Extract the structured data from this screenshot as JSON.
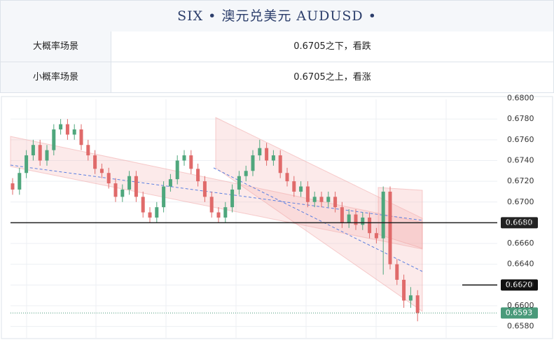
{
  "header": {
    "title": "SIX • 澳元兑美元 AUDUSD •"
  },
  "table": {
    "rows": [
      [
        "大概率场景",
        "0.6705之下，看跌"
      ],
      [
        "小概率场景",
        "0.6705之上，看涨"
      ]
    ]
  },
  "chart_data": {
    "type": "candlestick",
    "up_color": "#4fa77d",
    "down_color": "#e06a6a",
    "grid": true,
    "ylim": [
      0.6571,
      0.6799
    ],
    "yticks": [
      {
        "value": 0.658,
        "label": "0.6580"
      },
      {
        "value": 0.66,
        "label": "0.6600"
      },
      {
        "value": 0.662,
        "label": "0.6620"
      },
      {
        "value": 0.664,
        "label": "0.6640"
      },
      {
        "value": 0.666,
        "label": "0.6660"
      },
      {
        "value": 0.668,
        "label": "0.6680"
      },
      {
        "value": 0.67,
        "label": "0.6700"
      },
      {
        "value": 0.672,
        "label": "0.6720"
      },
      {
        "value": 0.674,
        "label": "0.6740"
      },
      {
        "value": 0.676,
        "label": "0.6760"
      },
      {
        "value": 0.678,
        "label": "0.6780"
      },
      {
        "value": 0.68,
        "label": "0.6800"
      }
    ],
    "open": [
      0.6718,
      0.6712,
      0.6728,
      0.6745,
      0.6755,
      0.674,
      0.675,
      0.677,
      0.6775,
      0.6765,
      0.677,
      0.6755,
      0.6745,
      0.6732,
      0.6728,
      0.6718,
      0.6705,
      0.6712,
      0.6725,
      0.6705,
      0.669,
      0.6685,
      0.6695,
      0.6715,
      0.6722,
      0.674,
      0.6745,
      0.6732,
      0.672,
      0.6705,
      0.669,
      0.6685,
      0.6695,
      0.6712,
      0.6725,
      0.673,
      0.6745,
      0.6752,
      0.674,
      0.6745,
      0.6728,
      0.672,
      0.671,
      0.6715,
      0.67,
      0.6705,
      0.67,
      0.6705,
      0.6695,
      0.668,
      0.6688,
      0.6678,
      0.6685,
      0.667,
      0.6665,
      0.671,
      0.664,
      0.6625,
      0.6605,
      0.661
    ],
    "high": [
      0.6723,
      0.6733,
      0.675,
      0.676,
      0.676,
      0.6755,
      0.6775,
      0.678,
      0.678,
      0.6775,
      0.6775,
      0.676,
      0.675,
      0.6737,
      0.6733,
      0.6723,
      0.6717,
      0.673,
      0.673,
      0.671,
      0.6695,
      0.67,
      0.672,
      0.6727,
      0.6745,
      0.675,
      0.675,
      0.6737,
      0.6725,
      0.671,
      0.6695,
      0.67,
      0.6717,
      0.673,
      0.6735,
      0.675,
      0.676,
      0.6757,
      0.675,
      0.675,
      0.6733,
      0.6725,
      0.672,
      0.672,
      0.671,
      0.671,
      0.671,
      0.671,
      0.67,
      0.6693,
      0.6693,
      0.669,
      0.669,
      0.6675,
      0.6715,
      0.6715,
      0.6645,
      0.663,
      0.6618,
      0.6615
    ],
    "low": [
      0.6707,
      0.6707,
      0.6723,
      0.674,
      0.6735,
      0.6735,
      0.6745,
      0.6765,
      0.676,
      0.676,
      0.675,
      0.674,
      0.6727,
      0.6723,
      0.6713,
      0.67,
      0.67,
      0.6707,
      0.67,
      0.6685,
      0.668,
      0.668,
      0.669,
      0.671,
      0.6717,
      0.6735,
      0.6727,
      0.6715,
      0.67,
      0.6685,
      0.668,
      0.668,
      0.669,
      0.6707,
      0.672,
      0.6725,
      0.674,
      0.6735,
      0.6735,
      0.6723,
      0.6715,
      0.6705,
      0.6705,
      0.6695,
      0.6695,
      0.6695,
      0.6695,
      0.669,
      0.6675,
      0.6675,
      0.6673,
      0.6673,
      0.6665,
      0.666,
      0.663,
      0.6635,
      0.662,
      0.6598,
      0.6598,
      0.6585
    ],
    "close": [
      0.6712,
      0.6728,
      0.6745,
      0.6755,
      0.674,
      0.675,
      0.677,
      0.6775,
      0.6765,
      0.677,
      0.6755,
      0.6745,
      0.6732,
      0.6728,
      0.6718,
      0.6705,
      0.6712,
      0.6725,
      0.6705,
      0.669,
      0.6685,
      0.6695,
      0.6715,
      0.6722,
      0.674,
      0.6745,
      0.6732,
      0.672,
      0.6705,
      0.669,
      0.6685,
      0.6695,
      0.6712,
      0.6725,
      0.673,
      0.6745,
      0.6752,
      0.674,
      0.6745,
      0.6728,
      0.672,
      0.671,
      0.6715,
      0.67,
      0.6705,
      0.67,
      0.6705,
      0.6695,
      0.668,
      0.6688,
      0.6678,
      0.6685,
      0.667,
      0.6665,
      0.671,
      0.664,
      0.6625,
      0.6605,
      0.661,
      0.6593
    ],
    "price_lines": [
      {
        "value": 0.668,
        "label": "0.6680",
        "color": "#222222",
        "style": "full"
      },
      {
        "value": 0.662,
        "label": "0.6620",
        "color": "#111111",
        "style": "short"
      },
      {
        "value": 0.6593,
        "label": "0.6593",
        "color": "#4a9a7a",
        "style": "dotted"
      }
    ]
  }
}
